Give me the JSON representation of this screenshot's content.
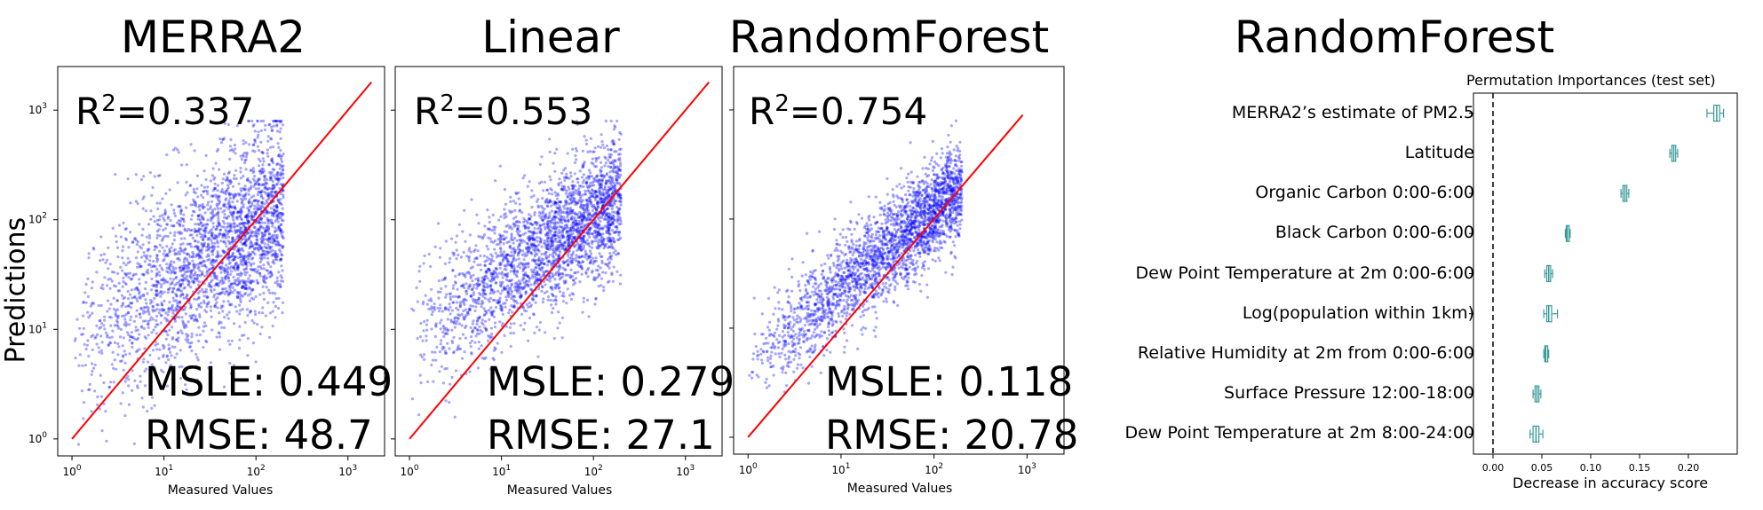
{
  "ylabel": "Predictions",
  "chart_data": [
    {
      "type": "scatter",
      "title": "MERRA2",
      "xlabel": "Measured Values",
      "ylabel": "Predictions",
      "xscale": "log",
      "yscale": "log",
      "xlim": [
        0.7,
        2500
      ],
      "ylim": [
        0.7,
        2500
      ],
      "xticks": [
        "10^0",
        "10^1",
        "10^2",
        "10^3"
      ],
      "yticks": [
        "10^0",
        "10^1",
        "10^2",
        "10^3"
      ],
      "r2_label": "R",
      "r2_value": "=0.337",
      "msle": "MSLE: 0.449",
      "rmse": "RMSE: 48.7",
      "point_color": "#0000ff",
      "line_color": "#ff0000",
      "identity_line": [
        1,
        1800
      ]
    },
    {
      "type": "scatter",
      "title": "Linear",
      "xlabel": "Measured Values",
      "xscale": "log",
      "yscale": "log",
      "xlim": [
        0.7,
        2500
      ],
      "ylim": [
        0.7,
        2500
      ],
      "xticks": [
        "10^0",
        "10^1",
        "10^2",
        "10^3"
      ],
      "r2_label": "R",
      "r2_value": "=0.553",
      "msle": "MSLE: 0.279",
      "rmse": "RMSE: 27.1",
      "point_color": "#0000ff",
      "line_color": "#ff0000",
      "identity_line": [
        1,
        1800
      ]
    },
    {
      "type": "scatter",
      "title": "RandomForest",
      "xlabel": "Measured Values",
      "xscale": "log",
      "yscale": "log",
      "xlim": [
        0.7,
        2500
      ],
      "ylim": [
        0.7,
        2500
      ],
      "xticks": [
        "10^0",
        "10^1",
        "10^2",
        "10^3"
      ],
      "r2_label": "R",
      "r2_value": "=0.754",
      "msle": "MSLE: 0.118",
      "rmse": "RMSE: 20.78",
      "point_color": "#0000ff",
      "line_color": "#ff0000",
      "identity_line": [
        1,
        900
      ]
    },
    {
      "type": "box",
      "super_title": "RandomForest",
      "title": "Permutation Importances (test set)",
      "xlabel": "Decrease in accuracy score",
      "xlim": [
        -0.02,
        0.25
      ],
      "xticks": [
        0.0,
        0.05,
        0.1,
        0.15,
        0.2
      ],
      "xtick_labels": [
        "0.00",
        "0.05",
        "0.10",
        "0.15",
        "0.20"
      ],
      "box_color": "#3a9a9a",
      "reference_line": 0,
      "features": [
        {
          "name": "MERRA2’s estimate of PM2.5",
          "min": 0.219,
          "q1": 0.226,
          "median": 0.229,
          "q3": 0.232,
          "max": 0.236
        },
        {
          "name": "Latitude",
          "min": 0.181,
          "q1": 0.183,
          "median": 0.185,
          "q3": 0.187,
          "max": 0.189
        },
        {
          "name": "Organic Carbon 0:00-6:00",
          "min": 0.131,
          "q1": 0.133,
          "median": 0.135,
          "q3": 0.137,
          "max": 0.139
        },
        {
          "name": "Black Carbon 0:00-6:00",
          "min": 0.074,
          "q1": 0.075,
          "median": 0.076,
          "q3": 0.078,
          "max": 0.079
        },
        {
          "name": "Dew Point Temperature at 2m 0:00-6:00",
          "min": 0.053,
          "q1": 0.055,
          "median": 0.057,
          "q3": 0.059,
          "max": 0.061
        },
        {
          "name": "Log(population within 1km)",
          "min": 0.052,
          "q1": 0.055,
          "median": 0.057,
          "q3": 0.06,
          "max": 0.066
        },
        {
          "name": "Relative Humidity at 2m from 0:00-6:00",
          "min": 0.052,
          "q1": 0.053,
          "median": 0.054,
          "q3": 0.056,
          "max": 0.057
        },
        {
          "name": "Surface Pressure 12:00-18:00",
          "min": 0.041,
          "q1": 0.043,
          "median": 0.045,
          "q3": 0.047,
          "max": 0.049
        },
        {
          "name": "Dew Point Temperature at 2m 8:00-24:00",
          "min": 0.038,
          "q1": 0.041,
          "median": 0.044,
          "q3": 0.047,
          "max": 0.051
        }
      ]
    }
  ]
}
